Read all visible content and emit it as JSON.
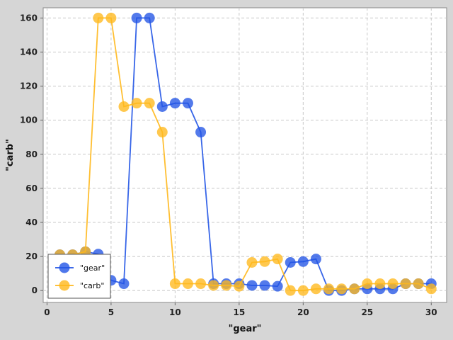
{
  "chart_data": {
    "type": "line",
    "title": "",
    "xlabel": "\"gear\"",
    "ylabel": "\"carb\"",
    "xlim": [
      -0.3,
      31.2
    ],
    "ylim": [
      -7,
      166
    ],
    "xticks": [
      0,
      5,
      10,
      15,
      20,
      25,
      30
    ],
    "yticks": [
      0,
      20,
      40,
      60,
      80,
      100,
      120,
      140,
      160
    ],
    "grid": true,
    "legend_position": "bottom-left",
    "x": [
      1,
      2,
      3,
      4,
      5,
      6,
      7,
      8,
      9,
      10,
      11,
      12,
      13,
      14,
      15,
      16,
      17,
      18,
      19,
      20,
      21,
      22,
      23,
      24,
      25,
      26,
      27,
      28,
      29,
      30
    ],
    "series": [
      {
        "name": "\"gear\"",
        "color": "#2255e6",
        "values": [
          21,
          21,
          22.8,
          21.4,
          6,
          4,
          160,
          160,
          108,
          110,
          110,
          93,
          4,
          4,
          4,
          3,
          3,
          2.5,
          16.5,
          17,
          18.5,
          0,
          0,
          1,
          1,
          1,
          1,
          4,
          4,
          4
        ]
      },
      {
        "name": "\"carb\"",
        "color": "#ffb81c",
        "values": [
          21,
          21,
          22.8,
          160,
          160,
          108,
          110,
          110,
          93,
          4,
          4,
          4,
          3,
          3,
          2.5,
          16.5,
          17,
          18.5,
          0,
          0,
          1,
          1,
          1,
          1,
          4,
          4,
          4,
          4,
          4,
          1
        ]
      }
    ]
  }
}
